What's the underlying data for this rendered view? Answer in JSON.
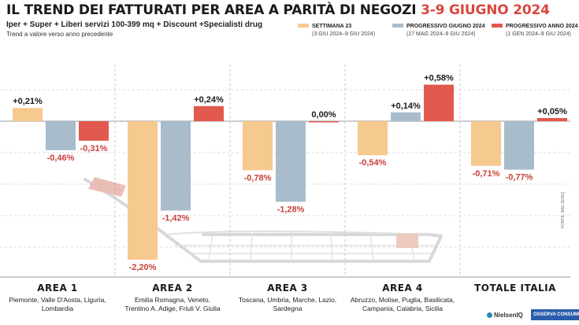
{
  "header": {
    "title_main": "IL TREND DEI FATTURATI PER AREA A PARITÀ DI NEGOZI",
    "title_accent": "3-9 GIUGNO 2024",
    "subtitle": "Iper + Super + Liberi servizi 100-399 mq + Discount +Specialisti drug",
    "note": "Trend a valore verso anno precedente"
  },
  "legend": [
    {
      "name": "SETTIMANA 23",
      "sub": "(3 GIU 2024–9 GIU 2024)",
      "color": "#f6c98e"
    },
    {
      "name": "PROGRESSIVO GIUGNO 2024",
      "sub": "(27 MAG 2024–9 GIU 2024)",
      "color": "#a8bccb"
    },
    {
      "name": "PROGRESSIVO ANNO 2024",
      "sub": "(1 GEN 2024–9 GIU 2024)",
      "color": "#e1594e"
    }
  ],
  "areas": [
    {
      "name": "AREA 1",
      "desc": [
        "Piemonte, Valle D'Aosta, Liguria,",
        "Lombardia"
      ]
    },
    {
      "name": "AREA 2",
      "desc": [
        "Emilia Romagna, Veneto,",
        "Trentino A. Adige, Friuli V. Giulia"
      ]
    },
    {
      "name": "AREA 3",
      "desc": [
        "Toscana, Umbria, Marche, Lazio,",
        "Sardegna"
      ]
    },
    {
      "name": "AREA 4",
      "desc": [
        "Abruzzo, Molise, Puglia, Basilicata,",
        "Campania, Calabria, Sicilia"
      ]
    },
    {
      "name": "TOTALE ITALIA",
      "desc": []
    }
  ],
  "chart_data": {
    "type": "bar",
    "categories": [
      "AREA 1",
      "AREA 2",
      "AREA 3",
      "AREA 4",
      "TOTALE ITALIA"
    ],
    "series": [
      {
        "name": "SETTIMANA 23",
        "values": [
          0.21,
          -2.2,
          -0.78,
          -0.54,
          -0.71
        ],
        "labels": [
          "+0,21%",
          "-2,20%",
          "-0,78%",
          "-0,54%",
          "-0,71%"
        ],
        "color": "#f6c98e"
      },
      {
        "name": "PROGRESSIVO GIUGNO 2024",
        "values": [
          -0.46,
          -1.42,
          -1.28,
          0.14,
          -0.77
        ],
        "labels": [
          "-0,46%",
          "-1,42%",
          "-1,28%",
          "+0,14%",
          "-0,77%"
        ],
        "color": "#a8bccb"
      },
      {
        "name": "PROGRESSIVO ANNO 2024",
        "values": [
          -0.31,
          0.24,
          0.0,
          0.58,
          0.05
        ],
        "labels": [
          "-0,31%",
          "+0,24%",
          "0,00%",
          "+0,58%",
          "+0,05%"
        ],
        "color": "#e1594e"
      }
    ],
    "ylim": [
      -2.4,
      0.75
    ],
    "grid": true,
    "legend_position": "top-right"
  },
  "source": {
    "side_text": "FONTE: NIELSENIQ",
    "logo1": "NielsenIQ",
    "logo2": "OSSERVA CONSUMI"
  }
}
